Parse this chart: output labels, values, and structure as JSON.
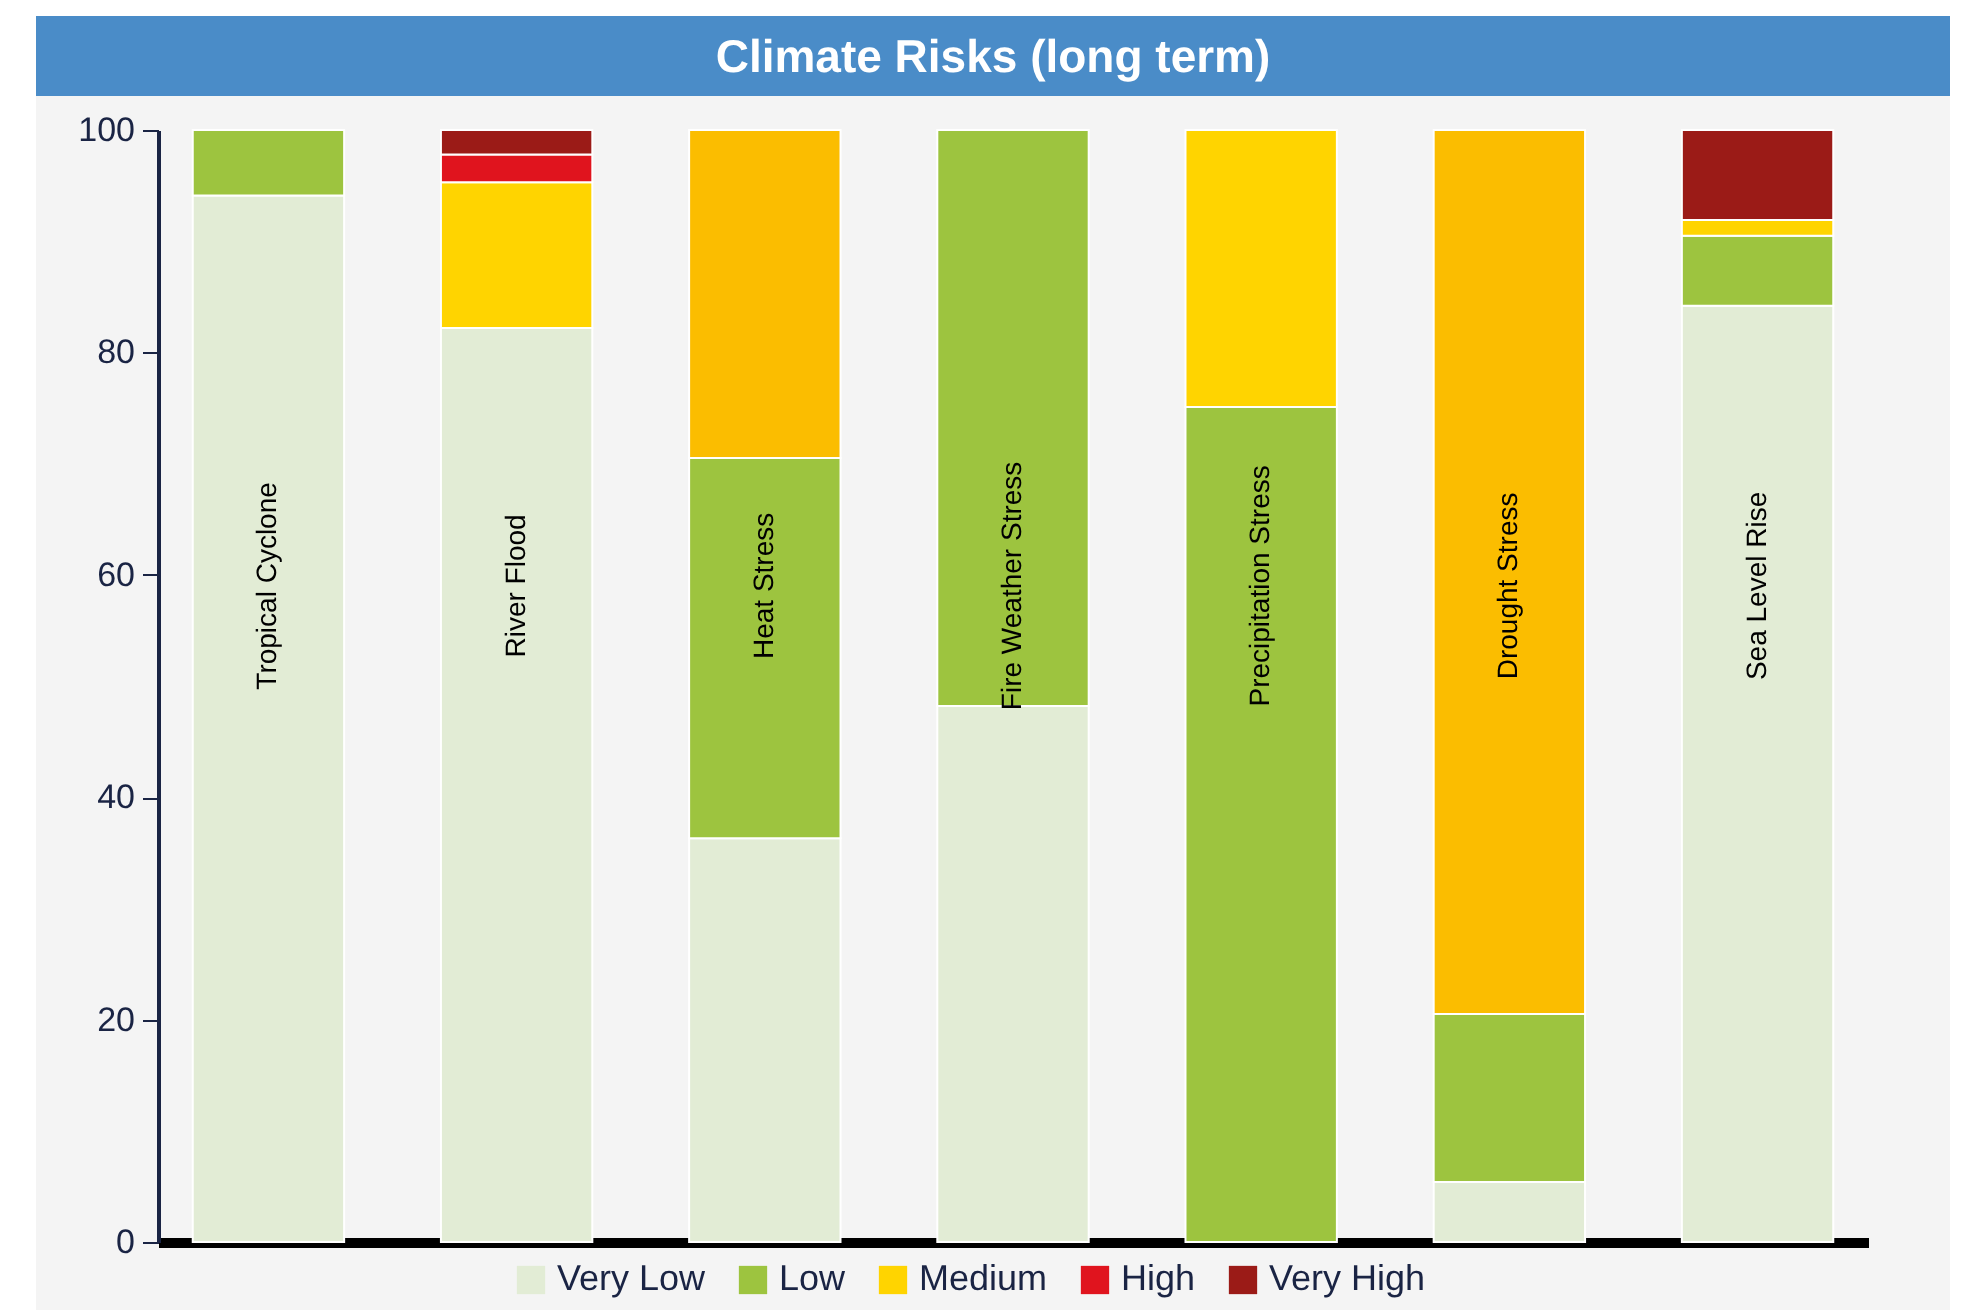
{
  "chart_data": {
    "type": "bar",
    "title": "Climate Risks (long term)",
    "stacked": true,
    "grid": false,
    "legend": "bottom",
    "categories": [
      "Tropical Cyclone",
      "River Flood",
      "Heat Stress",
      "Fire Weather Stress",
      "Precipitation Stress",
      "Drought Stress",
      "Sea Level Rise"
    ],
    "ylim": [
      0,
      100
    ],
    "yticks": [
      0,
      20,
      40,
      60,
      80,
      100
    ],
    "series": [
      {
        "name": "Very Low",
        "color": "#e2ecd5",
        "values": [
          94.1,
          82.2,
          36.3,
          48.2,
          0,
          5.4,
          84.2
        ]
      },
      {
        "name": "Low",
        "color": "#9dc43f",
        "values": [
          5.9,
          0,
          34.2,
          51.8,
          75.1,
          15.1,
          6.3
        ]
      },
      {
        "name": "Medium",
        "color": "#ffd400",
        "values": [
          0,
          13.1,
          0,
          0,
          24.9,
          0,
          1.4
        ]
      },
      {
        "color": "#fbbd00",
        "values": [
          0,
          0,
          29.5,
          0,
          0,
          79.5,
          0
        ]
      },
      {
        "name": "High",
        "color": "#e0141e",
        "values": [
          0,
          2.5,
          0,
          0,
          0,
          0,
          0
        ]
      },
      {
        "name": "Very High",
        "color": "#9b1b17",
        "values": [
          0,
          2.2,
          0,
          0,
          0,
          0,
          8.1
        ]
      }
    ]
  }
}
